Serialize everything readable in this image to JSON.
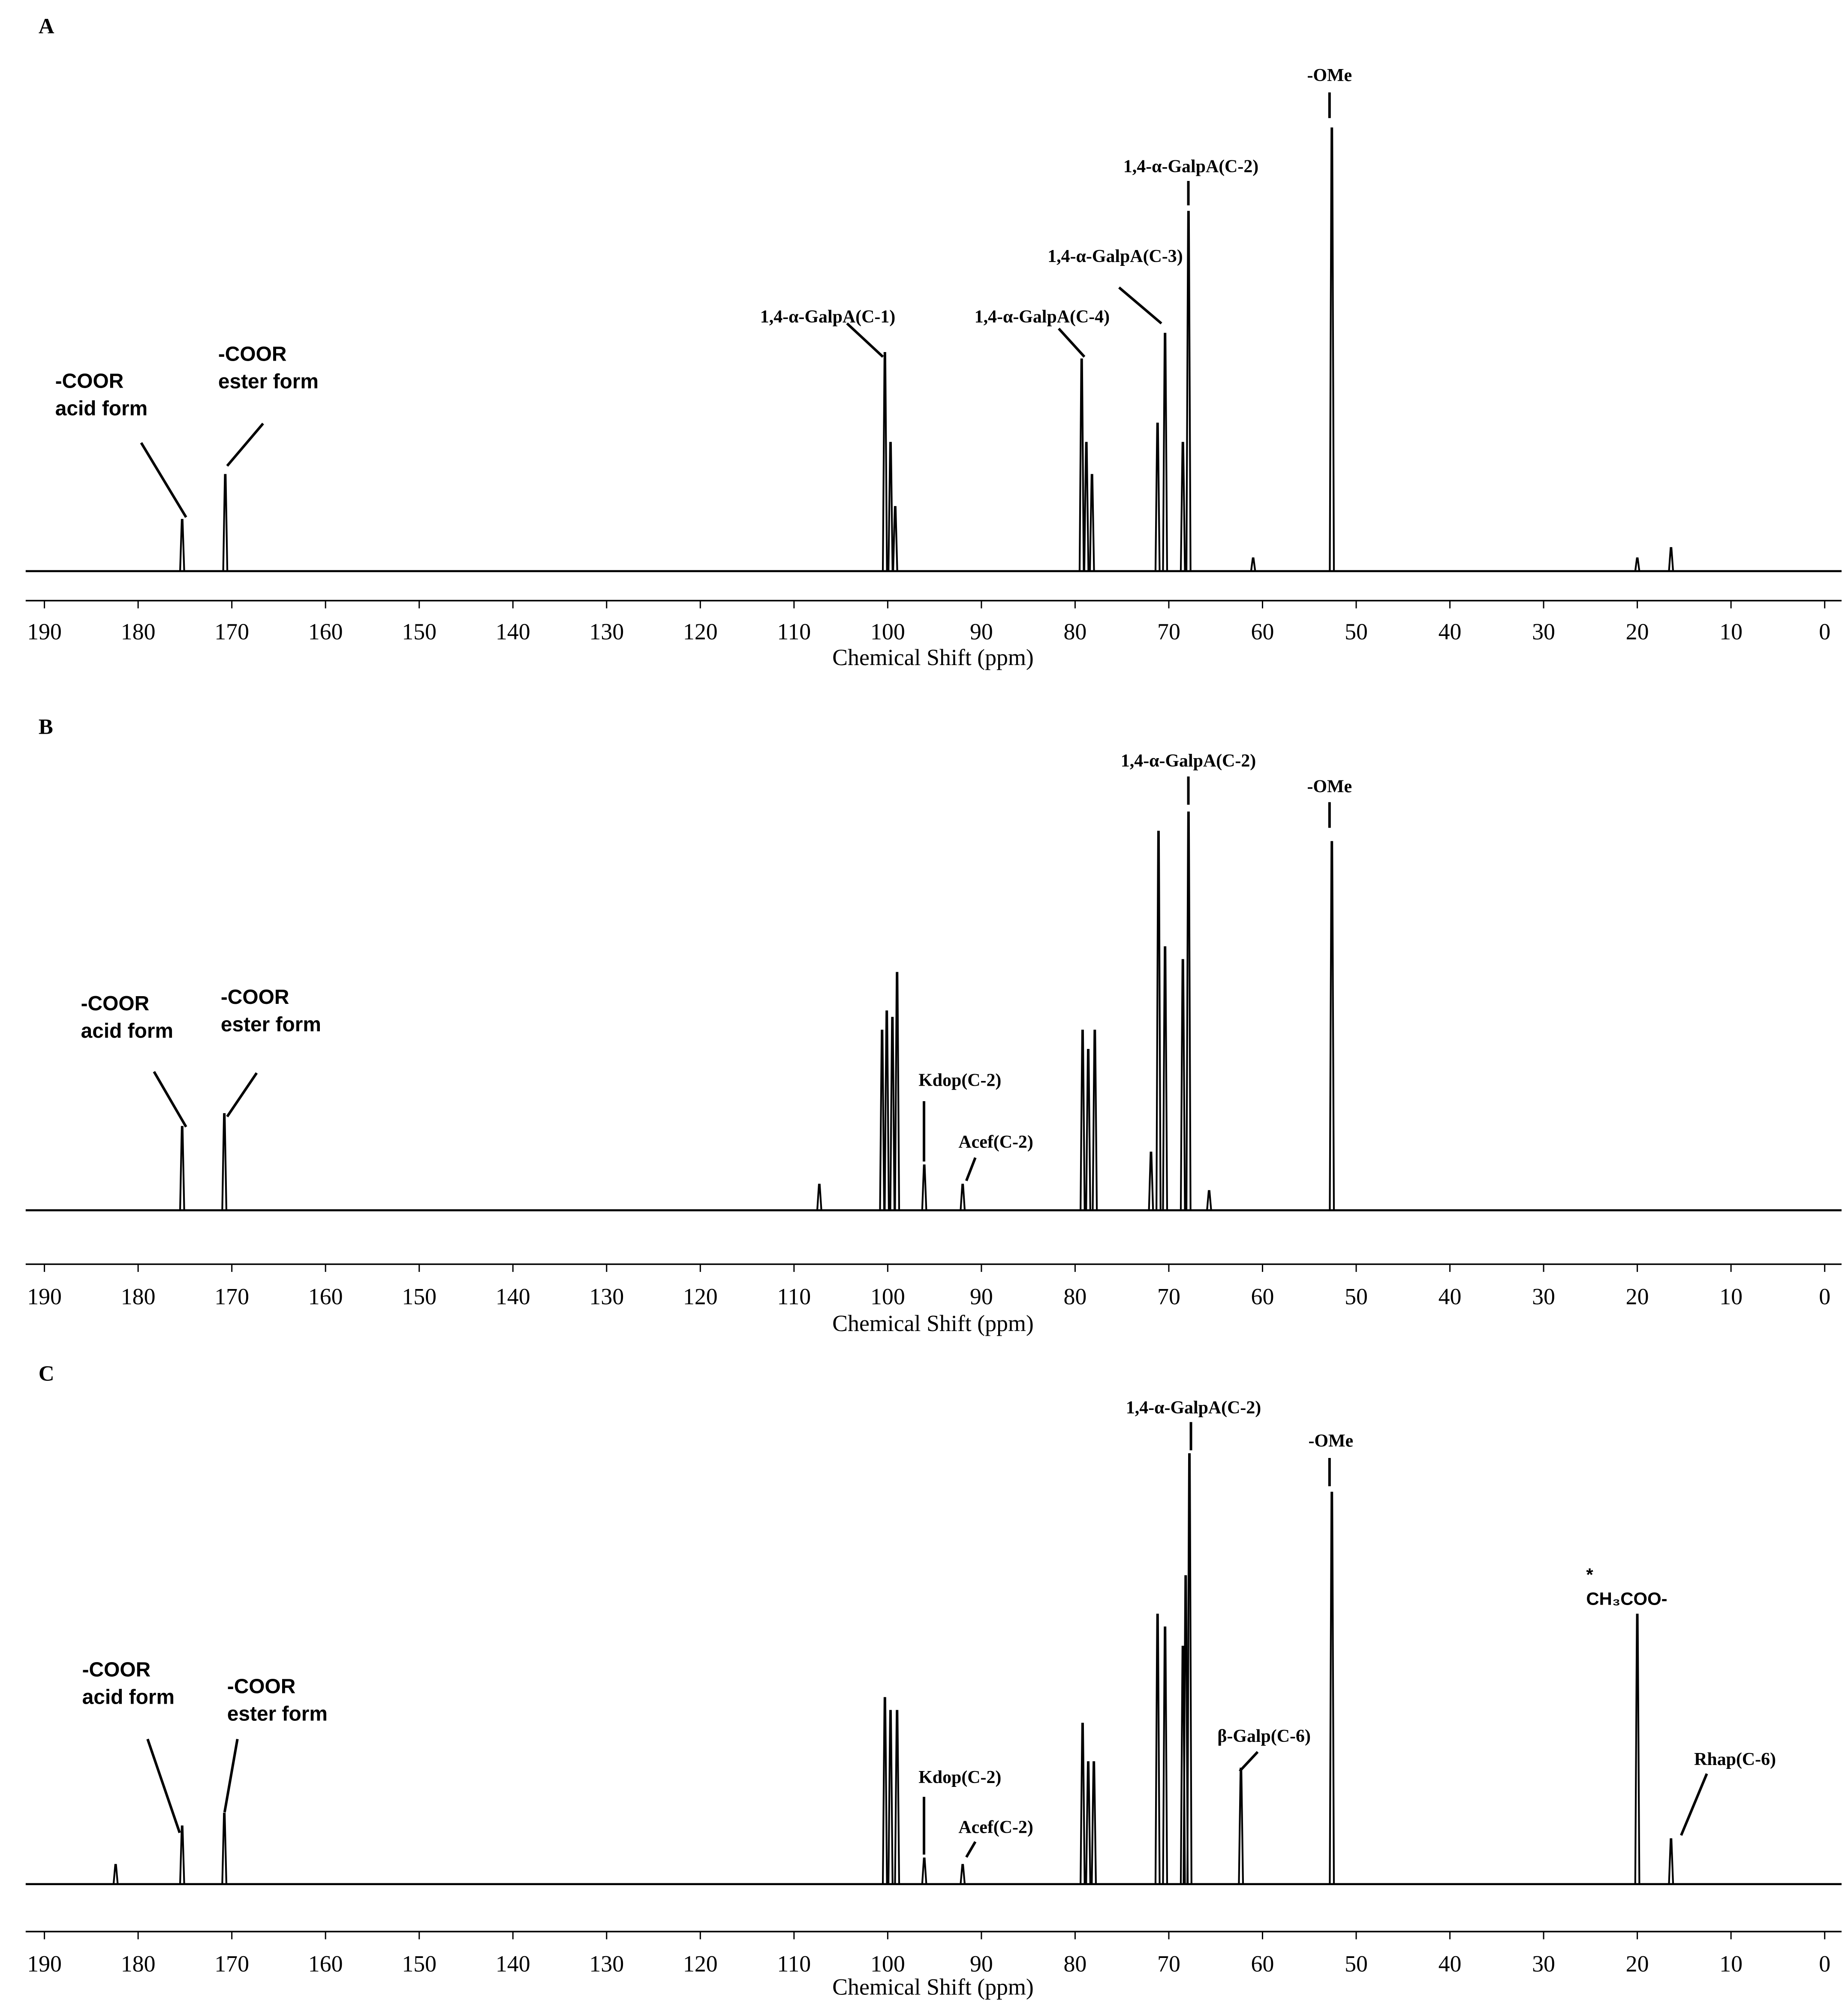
{
  "chart_data": [
    {
      "type": "spectrum",
      "title": "A",
      "xlabel": "Chemical Shift (ppm)",
      "color": "#000000",
      "xlim": [
        192,
        -1.8
      ],
      "xticks": [
        190,
        180,
        170,
        160,
        150,
        140,
        130,
        120,
        110,
        100,
        90,
        80,
        70,
        60,
        50,
        40,
        30,
        20,
        10,
        0
      ],
      "ylim": [
        0,
        350
      ],
      "x": [
        175.3,
        170.7,
        100.3,
        99.7,
        99.2,
        79.3,
        78.8,
        78.2,
        71.2,
        70.4,
        68.5,
        67.9,
        61.0,
        52.6,
        20.0,
        16.4
      ],
      "values": [
        40,
        75,
        170,
        100,
        50,
        165,
        100,
        75,
        115,
        185,
        100,
        280,
        10,
        345,
        10,
        18
      ],
      "annotations": [
        [
          "-COOR",
          "acid form"
        ],
        [
          "-COOR",
          "ester form"
        ],
        [
          "1,4-α-GalpA(C-1)"
        ],
        [
          "1,4-α-GalpA(C-3)"
        ],
        [
          "1,4-α-GalpA(C-4)"
        ],
        [
          "1,4-α-GalpA(C-2)"
        ],
        [
          "-OMe"
        ]
      ]
    },
    {
      "type": "spectrum",
      "title": "B",
      "xlabel": "Chemical Shift (ppm)",
      "color": "#000000",
      "xlim": [
        192,
        -1.8
      ],
      "xticks": [
        190,
        180,
        170,
        160,
        150,
        140,
        130,
        120,
        110,
        100,
        90,
        80,
        70,
        60,
        50,
        40,
        30,
        20,
        10,
        0
      ],
      "ylim": [
        0,
        350
      ],
      "x": [
        175.3,
        170.8,
        107.3,
        100.6,
        100.1,
        99.5,
        99.0,
        96.1,
        92.0,
        79.2,
        78.6,
        77.9,
        71.9,
        71.1,
        70.4,
        68.5,
        67.9,
        65.7,
        52.6
      ],
      "values": [
        65,
        75,
        20,
        140,
        155,
        150,
        185,
        35,
        20,
        140,
        125,
        140,
        45,
        295,
        205,
        195,
        310,
        15,
        287
      ],
      "annotations": [
        [
          "-COOR",
          "acid form"
        ],
        [
          "-COOR",
          "ester form"
        ],
        [
          "1,4-α-GalpA(C-2)"
        ],
        [
          "-OMe"
        ],
        [
          "Kdop(C-2)"
        ],
        [
          "Acef(C-2)"
        ]
      ]
    },
    {
      "type": "spectrum",
      "title": "C",
      "xlabel": "Chemical Shift (ppm)",
      "color": "#000000",
      "xlim": [
        192,
        -1.8
      ],
      "xticks": [
        190,
        180,
        170,
        160,
        150,
        140,
        130,
        120,
        110,
        100,
        90,
        80,
        70,
        60,
        50,
        40,
        30,
        20,
        10,
        0
      ],
      "ylim": [
        0,
        350
      ],
      "x": [
        182.4,
        175.3,
        170.8,
        100.3,
        99.7,
        99.0,
        96.1,
        92.0,
        79.2,
        78.6,
        78.0,
        71.2,
        70.4,
        68.5,
        68.2,
        67.8,
        62.3,
        52.6,
        20.0,
        16.4
      ],
      "values": [
        15,
        45,
        55,
        145,
        135,
        135,
        20,
        15,
        125,
        95,
        95,
        210,
        200,
        185,
        240,
        335,
        90,
        305,
        210,
        35
      ],
      "annotations": [
        [
          "-COOR",
          "acid form"
        ],
        [
          "-COOR",
          "ester form"
        ],
        [
          "1,4-α-GalpA(C-2)"
        ],
        [
          "-OMe"
        ],
        [
          "*",
          "CH₃COO-"
        ],
        [
          "β-Galp(C-6)"
        ],
        [
          "Rhap(C-6)"
        ],
        [
          "Kdop(C-2)"
        ],
        [
          "Acef(C-2)"
        ]
      ]
    }
  ]
}
